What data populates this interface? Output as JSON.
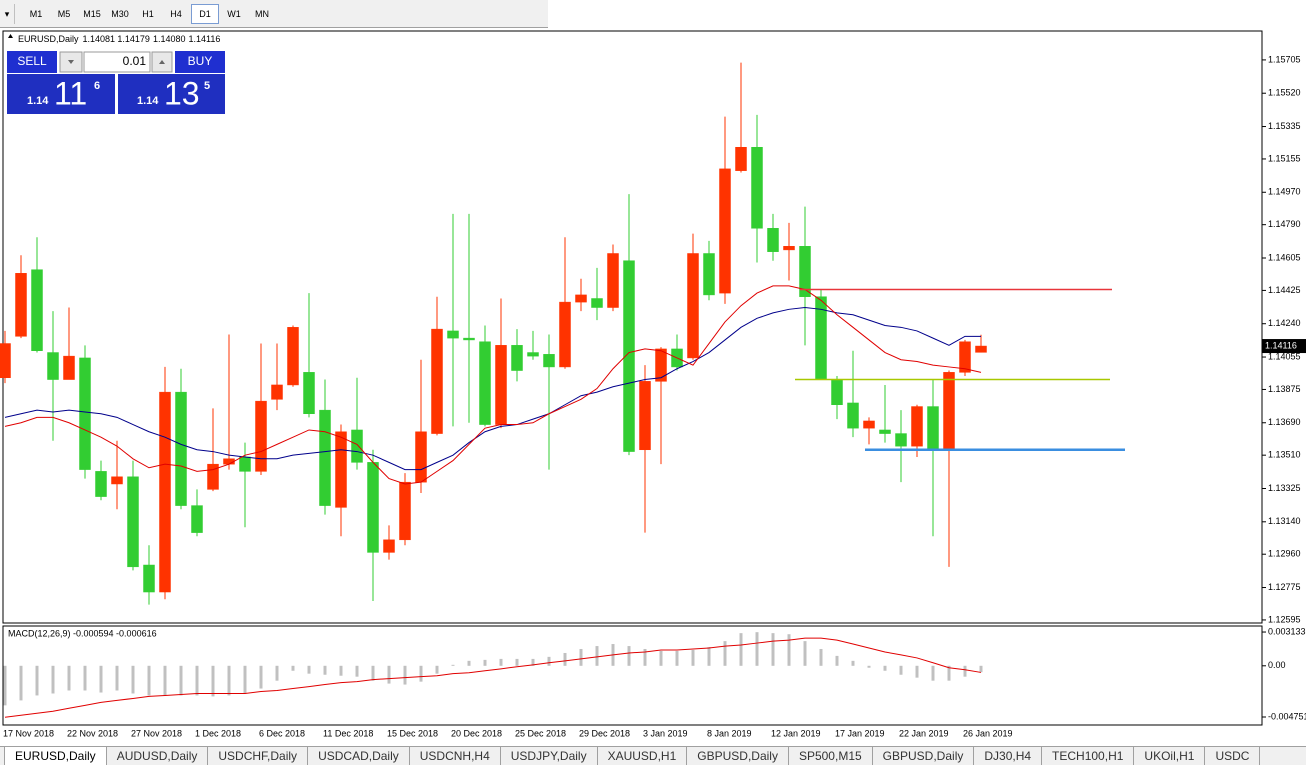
{
  "toolbar": {
    "timeframes": [
      "M1",
      "M5",
      "M15",
      "M30",
      "H1",
      "H4",
      "D1",
      "W1",
      "MN"
    ],
    "active": 6
  },
  "chart_header": {
    "symbol": "EURUSD,Daily",
    "ohlc": [
      "1.14081",
      "1.14179",
      "1.14080",
      "1.14116"
    ]
  },
  "trade_panel": {
    "sell": "SELL",
    "buy": "BUY",
    "volume": "0.01",
    "bid": {
      "big_figure": "1.14",
      "pips": "11",
      "fraction": "6"
    },
    "ask": {
      "big_figure": "1.14",
      "pips": "13",
      "fraction": "5"
    }
  },
  "chart_data": [
    {
      "type": "candlestick",
      "categories": [
        "17 Nov 2018",
        null,
        null,
        null,
        "22 Nov 2018",
        null,
        null,
        null,
        "27 Nov 2018",
        null,
        null,
        null,
        "1 Dec 2018",
        null,
        null,
        null,
        "6 Dec 2018",
        null,
        null,
        null,
        "11 Dec 2018",
        null,
        null,
        null,
        "15 Dec 2018",
        null,
        null,
        null,
        "20 Dec 2018",
        null,
        null,
        null,
        "25 Dec 2018",
        null,
        null,
        null,
        "29 Dec 2018",
        null,
        null,
        null,
        "3 Jan 2019",
        null,
        null,
        null,
        "8 Jan 2019",
        null,
        null,
        null,
        "12 Jan 2019",
        null,
        null,
        null,
        "17 Jan 2019",
        null,
        null,
        null,
        "22 Jan 2019",
        null,
        null,
        null,
        "26 Jan 2019",
        null
      ],
      "open": [
        1.1394,
        1.1417,
        1.1454,
        1.1408,
        1.1393,
        1.1405,
        1.1342,
        1.1335,
        1.1339,
        1.129,
        1.1275,
        1.1386,
        1.1323,
        1.1332,
        1.1346,
        1.135,
        1.1342,
        1.1382,
        1.139,
        1.1397,
        1.1376,
        1.1322,
        1.1365,
        1.1347,
        1.1297,
        1.1304,
        1.1336,
        1.1363,
        1.142,
        1.1416,
        1.1414,
        1.1368,
        1.1412,
        1.1408,
        1.1407,
        1.14,
        1.1436,
        1.1438,
        1.1433,
        1.1459,
        1.1354,
        1.1392,
        1.141,
        1.1405,
        1.1463,
        1.1441,
        1.1509,
        1.1522,
        1.1477,
        1.1465,
        1.1467,
        1.1439,
        1.1393,
        1.138,
        1.1366,
        1.1365,
        1.1363,
        1.1356,
        1.1378,
        1.1354,
        1.1397,
        1.14081
      ],
      "high": [
        1.142,
        1.1462,
        1.1472,
        1.1431,
        1.1433,
        1.1412,
        1.1348,
        1.1359,
        1.1348,
        1.1301,
        1.14,
        1.1399,
        1.1332,
        1.1377,
        1.1418,
        1.1358,
        1.1413,
        1.1413,
        1.1423,
        1.1441,
        1.1393,
        1.1368,
        1.1394,
        1.1354,
        1.1312,
        1.1341,
        1.1404,
        1.1439,
        1.1485,
        1.1485,
        1.1423,
        1.1438,
        1.1421,
        1.142,
        1.1418,
        1.1472,
        1.1449,
        1.1455,
        1.1468,
        1.1496,
        1.1401,
        1.1411,
        1.1418,
        1.1474,
        1.147,
        1.1539,
        1.1569,
        1.154,
        1.1485,
        1.148,
        1.1489,
        1.1443,
        1.1395,
        1.1409,
        1.1372,
        1.139,
        1.1376,
        1.1379,
        1.1393,
        1.1398,
        1.1415,
        1.14179
      ],
      "low": [
        1.1391,
        1.1416,
        1.1408,
        1.1359,
        1.1393,
        1.1338,
        1.1326,
        1.1321,
        1.1287,
        1.1268,
        1.1271,
        1.1321,
        1.1306,
        1.1331,
        1.1343,
        1.1311,
        1.134,
        1.1376,
        1.1389,
        1.1372,
        1.1318,
        1.1306,
        1.1343,
        1.127,
        1.1293,
        1.1301,
        1.133,
        1.1362,
        1.1367,
        1.1369,
        1.1367,
        1.1366,
        1.1392,
        1.1404,
        1.1343,
        1.1399,
        1.1431,
        1.1426,
        1.1431,
        1.1351,
        1.1308,
        1.1346,
        1.1398,
        1.1404,
        1.1437,
        1.1435,
        1.1508,
        1.1458,
        1.1459,
        1.1448,
        1.1412,
        1.1393,
        1.1371,
        1.1361,
        1.1357,
        1.1358,
        1.1336,
        1.135,
        1.1306,
        1.1289,
        1.1395,
        1.1408
      ],
      "close": [
        1.1413,
        1.1452,
        1.1409,
        1.1393,
        1.1406,
        1.1343,
        1.1328,
        1.1339,
        1.1289,
        1.1275,
        1.1386,
        1.1323,
        1.1308,
        1.1346,
        1.1349,
        1.1342,
        1.1381,
        1.139,
        1.1422,
        1.1374,
        1.1323,
        1.1364,
        1.1347,
        1.1297,
        1.1304,
        1.1336,
        1.1364,
        1.1421,
        1.1416,
        1.1415,
        1.1368,
        1.1412,
        1.1398,
        1.1406,
        1.14,
        1.1436,
        1.144,
        1.1433,
        1.1463,
        1.1353,
        1.1392,
        1.141,
        1.14,
        1.1463,
        1.144,
        1.151,
        1.1522,
        1.1477,
        1.1464,
        1.1467,
        1.1439,
        1.1393,
        1.1379,
        1.1366,
        1.137,
        1.1363,
        1.1356,
        1.1378,
        1.1354,
        1.1397,
        1.1414,
        1.14116
      ],
      "up_color": "#ff3300",
      "down_color": "#32cd32",
      "lines": [
        {
          "color": "#00008b",
          "values": [
            1.1372,
            1.1374,
            1.1376,
            1.1375,
            1.1376,
            1.1375,
            1.1374,
            1.1372,
            1.1368,
            1.1364,
            1.1361,
            1.1357,
            1.1354,
            1.1353,
            1.1351,
            1.135,
            1.1349,
            1.1349,
            1.1351,
            1.1352,
            1.1353,
            1.1354,
            1.1353,
            1.1351,
            1.1347,
            1.1343,
            1.1343,
            1.1347,
            1.1351,
            1.1358,
            1.1364,
            1.1367,
            1.1368,
            1.1371,
            1.1374,
            1.1379,
            1.1384,
            1.1386,
            1.1389,
            1.1391,
            1.1393,
            1.1394,
            1.1399,
            1.1403,
            1.1408,
            1.1415,
            1.1422,
            1.1427,
            1.143,
            1.1432,
            1.1433,
            1.1432,
            1.143,
            1.1429,
            1.1426,
            1.1423,
            1.1422,
            1.142,
            1.1416,
            1.1412,
            1.1417,
            1.1417
          ]
        },
        {
          "color": "#e00000",
          "values": [
            1.1367,
            1.1369,
            1.1372,
            1.1372,
            1.1369,
            1.1365,
            1.1361,
            1.1356,
            1.1349,
            1.1344,
            1.1346,
            1.1345,
            1.1342,
            1.1343,
            1.1346,
            1.1351,
            1.1353,
            1.1357,
            1.1361,
            1.1365,
            1.1364,
            1.1361,
            1.1357,
            1.1347,
            1.1338,
            1.1335,
            1.1336,
            1.1342,
            1.1348,
            1.1357,
            1.1366,
            1.1368,
            1.1368,
            1.1369,
            1.1374,
            1.1378,
            1.1382,
            1.1388,
            1.1399,
            1.1408,
            1.141,
            1.1409,
            1.1405,
            1.1401,
            1.1413,
            1.1425,
            1.1434,
            1.1441,
            1.1445,
            1.1445,
            1.1443,
            1.1437,
            1.1429,
            1.1422,
            1.1415,
            1.1408,
            1.1404,
            1.1403,
            1.1401,
            1.14,
            1.1399,
            1.1397
          ]
        }
      ],
      "hlines": [
        {
          "value": 1.1443,
          "color": "#e8353a"
        },
        {
          "value": 1.1393,
          "color": "#a8c800"
        },
        {
          "value": 1.1354,
          "color": "#3a8ee0"
        }
      ],
      "current_price": {
        "value": 1.14116,
        "label": "1.14116"
      },
      "ylim": [
        1.12578,
        1.1586
      ],
      "yticks": [
        1.15705,
        {
          "value": 1.1552,
          "label": "1.15520"
        },
        1.15335,
        1.15155,
        {
          "value": 1.1497,
          "label": "1.14970"
        },
        {
          "value": 1.1479,
          "label": "1.14790"
        },
        1.14605,
        1.14425,
        {
          "value": 1.1424,
          "label": "1.14240"
        },
        1.14055,
        1.13875,
        {
          "value": 1.1369,
          "label": "1.13690"
        },
        {
          "value": 1.1351,
          "label": "1.13510"
        },
        1.13325,
        {
          "value": 1.1314,
          "label": "1.13140"
        },
        {
          "value": 1.1296,
          "label": "1.12960"
        },
        1.12775,
        1.12595
      ]
    },
    {
      "type": "macd",
      "title": "MACD(12,26,9) -0.000594 -0.000616",
      "histogram": [
        -0.00367,
        -0.00321,
        -0.00275,
        -0.00257,
        -0.00229,
        -0.00229,
        -0.00248,
        -0.00229,
        -0.00257,
        -0.00275,
        -0.00275,
        -0.00275,
        -0.00275,
        -0.00284,
        -0.00275,
        -0.00257,
        -0.00211,
        -0.00138,
        -0.00046,
        -0.00073,
        -0.00083,
        -0.00092,
        -0.00101,
        -0.00138,
        -0.00165,
        -0.00174,
        -0.00147,
        -0.00073,
        9e-05,
        0.00046,
        0.00055,
        0.00064,
        0.00064,
        0.00064,
        0.00083,
        0.00119,
        0.00156,
        0.00183,
        0.00202,
        0.00183,
        0.00156,
        0.00138,
        0.00138,
        0.00147,
        0.00174,
        0.00229,
        0.00303,
        0.00312,
        0.00303,
        0.00293,
        0.00229,
        0.00156,
        0.00092,
        0.00046,
        -0.00018,
        -0.00046,
        -0.00083,
        -0.0011,
        -0.00138,
        -0.00138,
        -0.00101,
        -0.000594
      ],
      "signal": [
        -0.00477,
        -0.00459,
        -0.0044,
        -0.00422,
        -0.00394,
        -0.00367,
        -0.00339,
        -0.00321,
        -0.00303,
        -0.00284,
        -0.00275,
        -0.00266,
        -0.00257,
        -0.00257,
        -0.00257,
        -0.00257,
        -0.00238,
        -0.00229,
        -0.00211,
        -0.00193,
        -0.00174,
        -0.00156,
        -0.00147,
        -0.00128,
        -0.00119,
        -0.0011,
        -0.00101,
        -0.00092,
        -0.00073,
        -0.00064,
        -0.00046,
        -0.00028,
        -9e-05,
        9e-05,
        0.00028,
        0.00046,
        0.00064,
        0.00083,
        0.00101,
        0.00119,
        0.00128,
        0.00147,
        0.00147,
        0.00156,
        0.00165,
        0.00183,
        0.00193,
        0.00211,
        0.00229,
        0.00238,
        0.00257,
        0.00257,
        0.00238,
        0.00202,
        0.00165,
        0.00128,
        0.00101,
        0.00073,
        0.00028,
        -0.00018,
        -0.00037,
        -0.000616
      ],
      "histogram_color": "#c0c0c0",
      "signal_color": "#e00000",
      "ylim": [
        -0.0054,
        0.0036
      ],
      "yticks": [
        0.003133,
        {
          "value": 0,
          "label": "0.00"
        },
        -0.004751
      ]
    }
  ],
  "tabs": {
    "items": [
      "EURUSD,Daily",
      "AUDUSD,Daily",
      "USDCHF,Daily",
      "USDCAD,Daily",
      "USDCNH,H4",
      "USDJPY,Daily",
      "XAUUSD,H1",
      "GBPUSD,Daily",
      "SP500,M15",
      "GBPUSD,Daily",
      "DJ30,H4",
      "TECH100,H1",
      "UKOil,H1",
      "USDC"
    ],
    "active": 0
  }
}
